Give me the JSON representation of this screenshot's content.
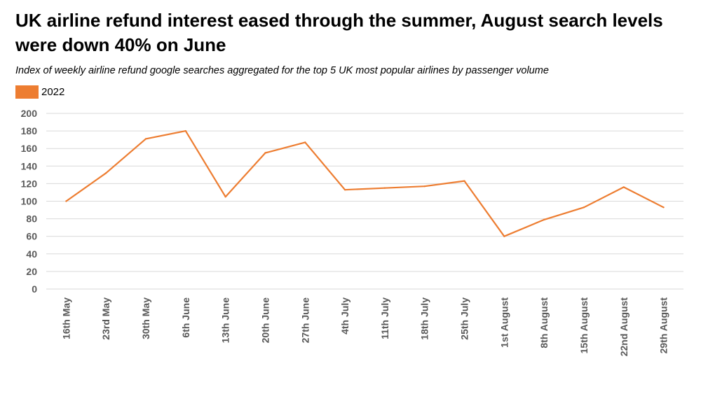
{
  "title": "UK airline refund interest eased through the summer, August search levels were down 40% on June",
  "subtitle": "Index of weekly airline refund google searches aggregated for the top 5 UK most popular airlines by passenger volume",
  "colors": {
    "series": "#ed7d31",
    "grid": "#d9d9d9",
    "ticks": "#595959"
  },
  "chart_data": {
    "type": "line",
    "title": "UK airline refund interest eased through the summer, August search levels were down 40% on June",
    "subtitle": "Index of weekly airline refund google searches aggregated for the top 5 UK most popular airlines by passenger volume",
    "categories": [
      "16th May",
      "23rd May",
      "30th May",
      "6th June",
      "13th June",
      "20th June",
      "27th June",
      "4th July",
      "11th July",
      "18th July",
      "25th July",
      "1st August",
      "8th August",
      "15th August",
      "22nd August",
      "29th August"
    ],
    "series": [
      {
        "name": "2022",
        "values": [
          100,
          132,
          171,
          180,
          105,
          155,
          167,
          113,
          115,
          117,
          123,
          60,
          79,
          93,
          116,
          93
        ]
      }
    ],
    "ylim": [
      0,
      200
    ],
    "yticks": [
      0,
      20,
      40,
      60,
      80,
      100,
      120,
      140,
      160,
      180,
      200
    ],
    "grid": true,
    "legend": "top-left",
    "xlabel": "",
    "ylabel": ""
  }
}
